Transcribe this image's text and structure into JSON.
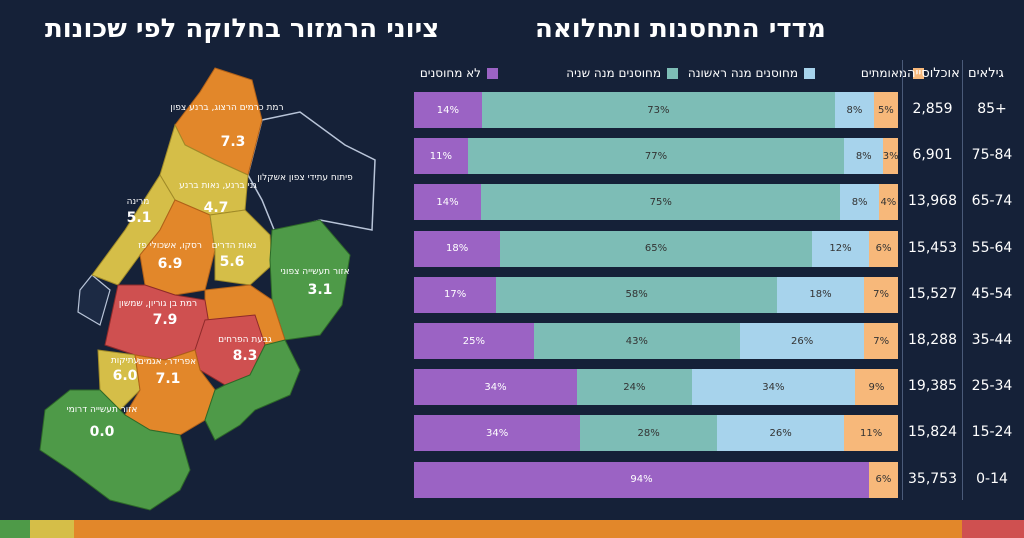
{
  "titles": {
    "right": "מדדי התחסנות ותחלואה",
    "left": "ציוני הרמזור בחלוקה לפי שכונות"
  },
  "legend": {
    "unvaccinated": "לא מחוסנים",
    "dose2": "מחוסנים מנה שניה",
    "dose1": "מחוסנים מנה ראשונה",
    "recovered": "מאומתים"
  },
  "colors": {
    "unvaccinated": "#9b63c4",
    "dose2": "#7dbdb6",
    "dose1": "#a7d3ec",
    "recovered": "#f7b87a",
    "green": "#4e9a48",
    "yellow": "#d5be48",
    "orange": "#e2872a",
    "red": "#cf5050",
    "navy": "#152138"
  },
  "columns": {
    "age": "גילאים",
    "population": "אוכלוסייה"
  },
  "chart_data": {
    "type": "bar",
    "categories": [
      "85+",
      "75-84",
      "65-74",
      "55-64",
      "45-54",
      "35-44",
      "25-34",
      "15-24",
      "0-14"
    ],
    "population": [
      "2,859",
      "6,901",
      "13,968",
      "15,453",
      "15,527",
      "18,288",
      "19,385",
      "15,824",
      "35,753"
    ],
    "series": [
      {
        "name": "לא מחוסנים",
        "values": [
          14,
          11,
          14,
          18,
          17,
          25,
          34,
          34,
          94
        ]
      },
      {
        "name": "מחוסנים מנה שניה",
        "values": [
          73,
          77,
          75,
          65,
          58,
          43,
          24,
          28,
          0
        ]
      },
      {
        "name": "מחוסנים מנה ראשונה",
        "values": [
          8,
          8,
          8,
          12,
          18,
          26,
          34,
          26,
          0
        ]
      },
      {
        "name": "מאומתים",
        "values": [
          5,
          3,
          4,
          6,
          7,
          7,
          9,
          11,
          6
        ]
      }
    ],
    "title": "מדדי התחסנות ותחלואה",
    "stacked": true,
    "orientation": "horizontal"
  },
  "map": {
    "neighborhoods": [
      {
        "name": "רמת כרמים הרצוג, ברנע צפון",
        "score": "7.3",
        "color": "orange"
      },
      {
        "name": "פיתוח עתידי צפון אשקלון",
        "score": "",
        "color": "navy"
      },
      {
        "name": "גני ברנע, נאות ברנע",
        "score": "4.7",
        "color": "yellow"
      },
      {
        "name": "מרינה",
        "score": "5.1",
        "color": "yellow"
      },
      {
        "name": "רסקו, אשכולי פז",
        "score": "6.9",
        "color": "orange"
      },
      {
        "name": "נאות הדרים",
        "score": "5.6",
        "color": "yellow"
      },
      {
        "name": "אזור תעשייה צפוני",
        "score": "3.1",
        "color": "green"
      },
      {
        "name": "רמת בן גוריון, שמשון",
        "score": "7.9",
        "color": "red"
      },
      {
        "name": "גבעת הפרחים",
        "score": "8.3",
        "color": "red"
      },
      {
        "name": "עתיקות",
        "score": "6.0",
        "color": "yellow"
      },
      {
        "name": "אפרידר, אגמים",
        "score": "7.1",
        "color": "orange"
      },
      {
        "name": "אזור תעשייה דרומי",
        "score": "0.0",
        "color": "green"
      }
    ]
  }
}
